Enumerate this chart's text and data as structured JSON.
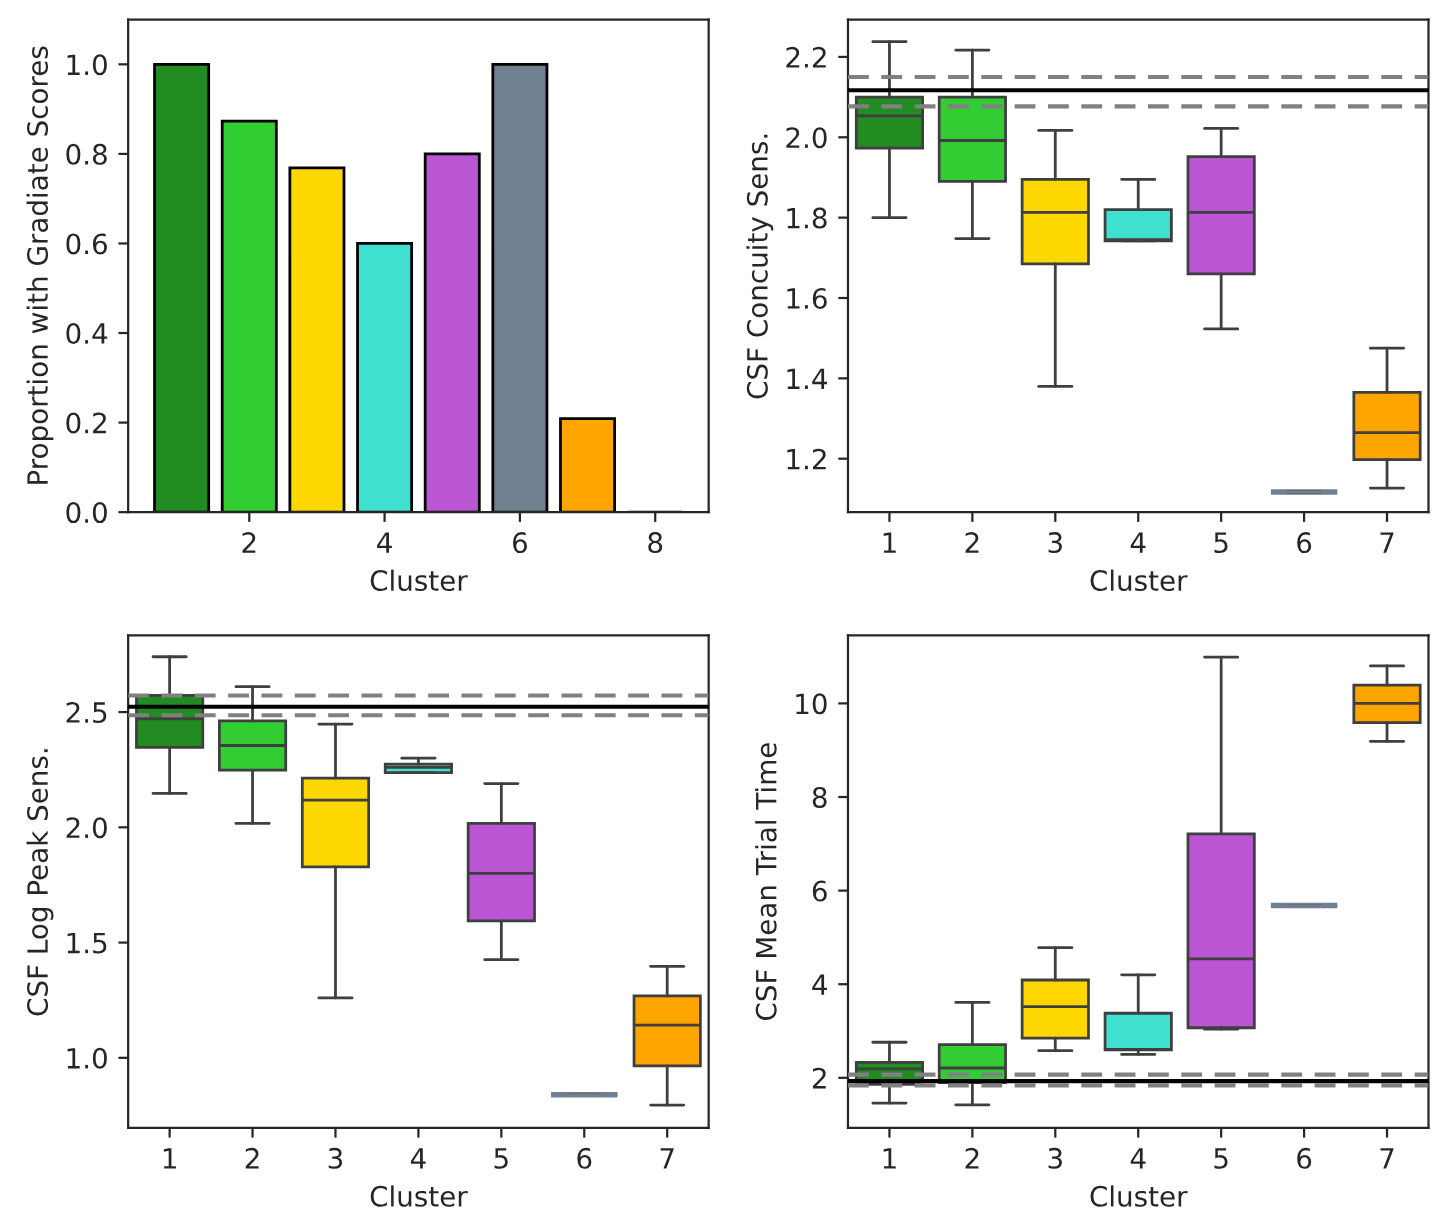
{
  "chart_data": [
    {
      "type": "bar",
      "xlabel": "Cluster",
      "ylabel": "Proportion with Gradiate Scores",
      "x": [
        1,
        2,
        3,
        4,
        5,
        6,
        7,
        8
      ],
      "values": [
        1.0,
        0.873,
        0.769,
        0.6,
        0.8,
        1.0,
        0.209,
        0.0
      ],
      "colors": [
        "#228b22",
        "#32cd32",
        "#ffd700",
        "#40e0d0",
        "#ba55d3",
        "#708090",
        "#ffa500",
        "#000000"
      ],
      "xlim": [
        0.21,
        8.79
      ],
      "xticks": [
        2,
        4,
        6,
        8
      ],
      "ylim": [
        0.0,
        1.1
      ],
      "yticks": [
        {
          "value": 0,
          "label": "0.0"
        },
        0.2,
        0.4,
        0.6,
        0.8,
        {
          "value": 1,
          "label": "1.0"
        }
      ]
    },
    {
      "type": "box",
      "xlabel": "Cluster",
      "ylabel": "CSF Concuity Sens.",
      "categories": [
        "1",
        "2",
        "3",
        "4",
        "5",
        "6",
        "7"
      ],
      "colors": [
        "#228b22",
        "#32cd32",
        "#ffd700",
        "#40e0d0",
        "#ba55d3",
        "#708090",
        "#ffa500"
      ],
      "boxes": [
        {
          "low": 1.8,
          "q1": 1.973,
          "median": 2.053,
          "q3": 2.1,
          "high": 2.238
        },
        {
          "low": 1.748,
          "q1": 1.89,
          "median": 1.992,
          "q3": 2.1,
          "high": 2.217
        },
        {
          "low": 1.38,
          "q1": 1.685,
          "median": 1.813,
          "q3": 1.895,
          "high": 2.017
        },
        {
          "low": 1.742,
          "q1": 1.742,
          "median": 1.745,
          "q3": 1.82,
          "high": 1.895
        },
        {
          "low": 1.523,
          "q1": 1.66,
          "median": 1.813,
          "q3": 1.952,
          "high": 2.022
        },
        {
          "low": 1.117,
          "q1": 1.117,
          "median": 1.117,
          "q3": 1.117,
          "high": 1.117
        },
        {
          "low": 1.127,
          "q1": 1.198,
          "median": 1.265,
          "q3": 1.365,
          "high": 1.475
        }
      ],
      "ylim": [
        1.067,
        2.293
      ],
      "yticks": [
        1.2,
        1.4,
        1.6,
        1.8,
        {
          "value": 2,
          "label": "2.0"
        },
        2.2
      ],
      "ref_lines": [
        {
          "axis": "y",
          "value": 2.117,
          "color": "#000000",
          "line_style": "solid"
        },
        {
          "axis": "y",
          "value": 2.15,
          "color": "#808080",
          "line_style": "dashed"
        },
        {
          "axis": "y",
          "value": 2.077,
          "color": "#808080",
          "line_style": "dashed"
        }
      ]
    },
    {
      "type": "box",
      "xlabel": "Cluster",
      "ylabel": "CSF Log Peak Sens.",
      "categories": [
        "1",
        "2",
        "3",
        "4",
        "5",
        "6",
        "7"
      ],
      "colors": [
        "#228b22",
        "#32cd32",
        "#ffd700",
        "#40e0d0",
        "#ba55d3",
        "#708090",
        "#ffa500"
      ],
      "boxes": [
        {
          "low": 2.147,
          "q1": 2.347,
          "median": 2.471,
          "q3": 2.572,
          "high": 2.74
        },
        {
          "low": 2.017,
          "q1": 2.248,
          "median": 2.355,
          "q3": 2.462,
          "high": 2.61
        },
        {
          "low": 1.26,
          "q1": 1.828,
          "median": 2.118,
          "q3": 2.213,
          "high": 2.448
        },
        {
          "low": 2.237,
          "q1": 2.237,
          "median": 2.26,
          "q3": 2.274,
          "high": 2.3
        },
        {
          "low": 1.426,
          "q1": 1.594,
          "median": 1.8,
          "q3": 2.017,
          "high": 2.19
        },
        {
          "low": 0.84,
          "q1": 0.84,
          "median": 0.84,
          "q3": 0.84,
          "high": 0.84
        },
        {
          "low": 0.795,
          "q1": 0.965,
          "median": 1.142,
          "q3": 1.269,
          "high": 1.397
        }
      ],
      "ylim": [
        0.696,
        2.833
      ],
      "yticks": [
        {
          "value": 1,
          "label": "1.0"
        },
        1.5,
        {
          "value": 2,
          "label": "2.0"
        },
        2.5
      ],
      "ref_lines": [
        {
          "axis": "y",
          "value": 2.523,
          "color": "#000000",
          "line_style": "solid"
        },
        {
          "axis": "y",
          "value": 2.572,
          "color": "#808080",
          "line_style": "dashed"
        },
        {
          "axis": "y",
          "value": 2.486,
          "color": "#808080",
          "line_style": "dashed"
        }
      ]
    },
    {
      "type": "box",
      "xlabel": "Cluster",
      "ylabel": "CSF Mean Trial Time",
      "categories": [
        "1",
        "2",
        "3",
        "4",
        "5",
        "6",
        "7"
      ],
      "colors": [
        "#228b22",
        "#32cd32",
        "#ffd700",
        "#40e0d0",
        "#ba55d3",
        "#708090",
        "#ffa500"
      ],
      "boxes": [
        {
          "low": 1.46,
          "q1": 1.86,
          "median": 2.19,
          "q3": 2.33,
          "high": 2.76
        },
        {
          "low": 1.42,
          "q1": 1.9,
          "median": 2.21,
          "q3": 2.71,
          "high": 3.61
        },
        {
          "low": 2.58,
          "q1": 2.85,
          "median": 3.52,
          "q3": 4.09,
          "high": 4.78
        },
        {
          "low": 2.5,
          "q1": 2.6,
          "median": 2.61,
          "q3": 3.38,
          "high": 4.2
        },
        {
          "low": 3.04,
          "q1": 3.07,
          "median": 4.54,
          "q3": 7.21,
          "high": 10.99
        },
        {
          "low": 5.68,
          "q1": 5.68,
          "median": 5.68,
          "q3": 5.68,
          "high": 5.68
        },
        {
          "low": 9.19,
          "q1": 9.59,
          "median": 10.0,
          "q3": 10.39,
          "high": 10.8
        }
      ],
      "ylim": [
        0.93,
        11.455
      ],
      "yticks": [
        2,
        4,
        6,
        8,
        10
      ],
      "ref_lines": [
        {
          "axis": "y",
          "value": 1.93,
          "color": "#000000",
          "line_style": "solid"
        },
        {
          "axis": "y",
          "value": 2.07,
          "color": "#808080",
          "line_style": "dashed"
        },
        {
          "axis": "y",
          "value": 1.84,
          "color": "#808080",
          "line_style": "dashed"
        }
      ]
    }
  ]
}
